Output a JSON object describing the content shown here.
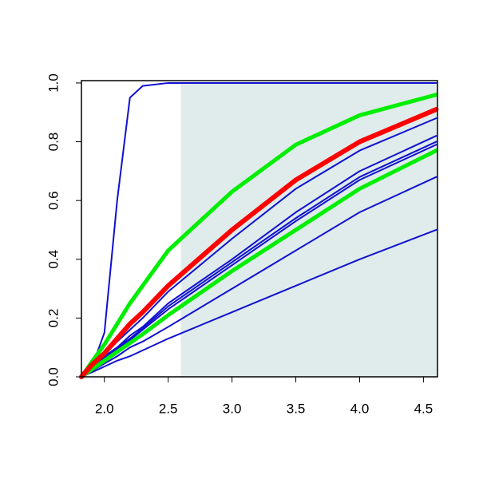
{
  "chart_data": {
    "type": "line",
    "x": [
      1.82,
      1.9,
      2.0,
      2.1,
      2.2,
      2.3,
      2.5,
      3.0,
      3.5,
      4.0,
      4.6
    ],
    "series": [
      {
        "color": "#1010d0",
        "width": 2,
        "values": [
          0,
          0.03,
          0.15,
          0.6,
          0.95,
          0.99,
          1,
          1,
          1,
          1,
          1
        ]
      },
      {
        "color": "#1010d0",
        "width": 2,
        "values": [
          0,
          0.015,
          0.035,
          0.055,
          0.07,
          0.09,
          0.13,
          0.22,
          0.31,
          0.4,
          0.5
        ]
      },
      {
        "color": "#1010d0",
        "width": 2,
        "values": [
          0,
          0.02,
          0.045,
          0.07,
          0.1,
          0.12,
          0.17,
          0.3,
          0.43,
          0.56,
          0.68
        ]
      },
      {
        "color": "#1010d0",
        "width": 2,
        "values": [
          0,
          0.03,
          0.06,
          0.095,
          0.125,
          0.16,
          0.23,
          0.38,
          0.53,
          0.67,
          0.79
        ]
      },
      {
        "color": "#1010d0",
        "width": 2,
        "values": [
          0,
          0.03,
          0.065,
          0.1,
          0.13,
          0.165,
          0.24,
          0.39,
          0.54,
          0.68,
          0.8
        ]
      },
      {
        "color": "#1010d0",
        "width": 2,
        "values": [
          0,
          0.03,
          0.07,
          0.1,
          0.14,
          0.17,
          0.25,
          0.4,
          0.56,
          0.7,
          0.82
        ]
      },
      {
        "color": "#1010d0",
        "width": 2,
        "values": [
          0,
          0.035,
          0.075,
          0.12,
          0.16,
          0.2,
          0.29,
          0.47,
          0.64,
          0.77,
          0.88
        ]
      },
      {
        "color": "#00ee00",
        "width": 5,
        "values": [
          0,
          0.025,
          0.055,
          0.085,
          0.115,
          0.145,
          0.21,
          0.36,
          0.5,
          0.64,
          0.77
        ]
      },
      {
        "color": "#00ee00",
        "width": 5,
        "values": [
          0,
          0.05,
          0.11,
          0.18,
          0.25,
          0.31,
          0.43,
          0.63,
          0.79,
          0.89,
          0.96
        ]
      },
      {
        "color": "#ff0000",
        "width": 6,
        "values": [
          0,
          0.04,
          0.08,
          0.13,
          0.18,
          0.22,
          0.31,
          0.5,
          0.67,
          0.8,
          0.91
        ]
      }
    ],
    "xlim": [
      1.82,
      4.61
    ],
    "ylim": [
      0,
      1.008
    ],
    "xticks": [
      {
        "value": 2,
        "label": "2.0"
      },
      2.5,
      {
        "value": 3,
        "label": "3.0"
      },
      3.5,
      {
        "value": 4,
        "label": "4.0"
      },
      4.5
    ],
    "yticks": [
      {
        "value": 0,
        "label": "0.0"
      },
      0.2,
      0.4,
      0.6,
      0.8,
      {
        "value": 1,
        "label": "1.0"
      }
    ],
    "shaded_region": {
      "xlim": [
        2.6,
        4.61
      ],
      "ylim": [
        0,
        1
      ],
      "color": "#dfeceb"
    }
  }
}
